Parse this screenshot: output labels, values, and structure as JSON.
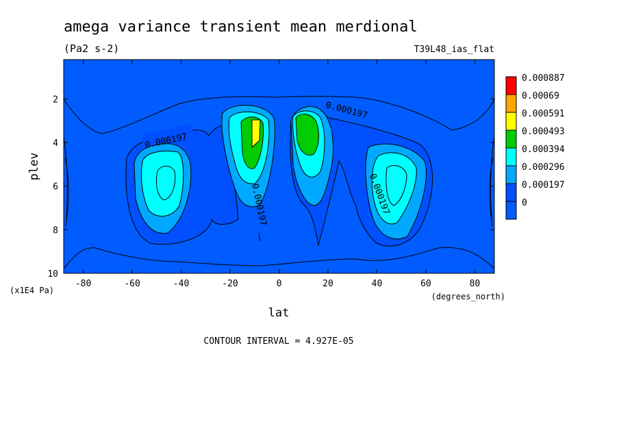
{
  "chart_data": {
    "type": "heatmap",
    "title": "amega variance transient mean merdional",
    "units": "(Pa2 s-2)",
    "experiment": "T39L48_ias_flat",
    "xlabel": "lat",
    "x_unit_label": "(degrees_north)",
    "ylabel": "plev",
    "y_unit_label": "(x1E4 Pa)",
    "xlim": [
      -88,
      88
    ],
    "ylim": [
      10,
      0.2
    ],
    "x_ticks": [
      "-80",
      "-60",
      "-40",
      "-20",
      "0",
      "20",
      "40",
      "60",
      "80"
    ],
    "x_tick_values": [
      -80,
      -60,
      -40,
      -20,
      0,
      20,
      40,
      60,
      80
    ],
    "y_ticks": [
      "2",
      "4",
      "6",
      "8",
      "10"
    ],
    "y_tick_values": [
      2,
      4,
      6,
      8,
      10
    ],
    "contour_interval_text": "CONTOUR INTERVAL = 4.927E-05",
    "contour_labels": [
      {
        "text": "0.000197",
        "lat": -47,
        "plev": 3.5
      },
      {
        "text": "0.000197",
        "lat": 20,
        "plev": 2.9
      },
      {
        "text": "0.000197",
        "lat": -17,
        "plev": 6.7
      },
      {
        "text": "0.000197",
        "lat": 33,
        "plev": 6.6
      }
    ],
    "colorbar": {
      "levels": [
        "0.000887",
        "0.00069",
        "0.000591",
        "0.000493",
        "0.000394",
        "0.000296",
        "0.000197",
        "0"
      ],
      "colors": [
        "#ff0000",
        "#ffa500",
        "#ffff00",
        "#00cc00",
        "#00ffff",
        "#00a8ff",
        "#0050ff",
        "#005cff"
      ]
    },
    "field_features": [
      {
        "name": "upper tropical max south",
        "lat": -9,
        "plev": 3.6,
        "value": 0.00052
      },
      {
        "name": "upper tropical max north",
        "lat": 10,
        "plev": 3.8,
        "value": 0.00045
      },
      {
        "name": "midlatitude max south",
        "lat": -48,
        "plev": 5.6,
        "value": 0.00033
      },
      {
        "name": "midlatitude max north",
        "lat": 47,
        "plev": 5.6,
        "value": 0.00033
      }
    ],
    "grid": false
  }
}
